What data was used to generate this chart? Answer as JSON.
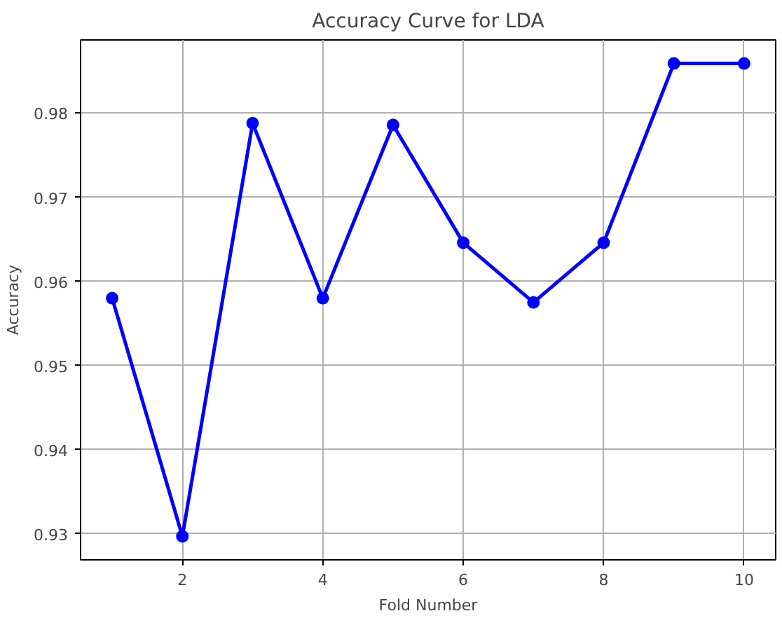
{
  "chart_data": {
    "type": "line",
    "title": "Accuracy Curve for LDA",
    "xlabel": "Fold Number",
    "ylabel": "Accuracy",
    "x": [
      1,
      2,
      3,
      4,
      5,
      6,
      7,
      8,
      9,
      10
    ],
    "series": [
      {
        "color": "#0000ff",
        "values": [
          0.958,
          0.9297,
          0.9788,
          0.958,
          0.9786,
          0.9646,
          0.9575,
          0.9646,
          0.9859,
          0.9859
        ]
      }
    ],
    "xlim": [
      0.55,
      10.45
    ],
    "xticks": [
      2,
      4,
      6,
      8,
      10
    ],
    "ylim": [
      0.9269,
      0.9887
    ],
    "yticks": [
      0.93,
      0.94,
      0.95,
      0.96,
      0.97,
      0.98
    ],
    "grid": true,
    "marker": "circle",
    "line_style": "solid"
  }
}
